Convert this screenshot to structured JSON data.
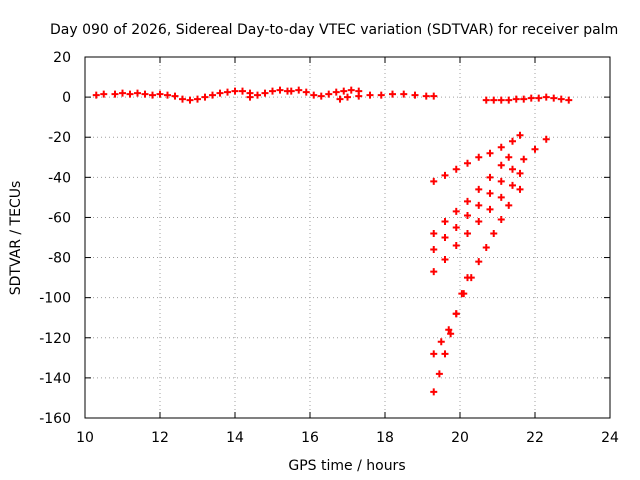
{
  "chart_data": {
    "type": "scatter",
    "title": "Day 090 of 2026, Sidereal Day-to-day VTEC variation (SDTVAR) for receiver palm",
    "xlabel": "GPS time / hours",
    "ylabel": "SDTVAR / TECUs",
    "xlim": [
      10,
      24
    ],
    "ylim": [
      -160,
      20
    ],
    "xticks": [
      10,
      12,
      14,
      16,
      18,
      20,
      22,
      24
    ],
    "yticks": [
      20,
      0,
      -20,
      -40,
      -60,
      -80,
      -100,
      -120,
      -140,
      -160
    ],
    "grid": true,
    "marker": "plus",
    "color": "#ff0000",
    "series": [
      {
        "x": [
          10.3,
          10.5,
          10.8,
          11.0,
          11.2,
          11.4,
          11.6,
          11.8,
          12.0,
          12.2,
          12.4,
          12.6,
          12.8,
          13.0,
          13.2,
          13.4,
          13.6,
          13.8,
          14.0,
          14.2,
          14.4
        ],
        "y": [
          1.0,
          1.5,
          1.5,
          2.0,
          1.5,
          2.0,
          1.5,
          1.0,
          1.5,
          1.0,
          0.5,
          -1.0,
          -1.5,
          -1.0,
          0.0,
          1.0,
          2.0,
          2.5,
          3.0,
          3.0,
          2.0
        ]
      },
      {
        "x": [
          14.4,
          14.6,
          14.8,
          15.0,
          15.2,
          15.4
        ],
        "y": [
          0.0,
          1.0,
          2.0,
          3.0,
          3.5,
          3.0
        ]
      },
      {
        "x": [
          15.5,
          15.7,
          15.9,
          16.1,
          16.3,
          16.5,
          16.7,
          16.9,
          17.1,
          17.3
        ],
        "y": [
          3.0,
          3.5,
          2.5,
          1.0,
          0.5,
          1.5,
          2.5,
          3.0,
          3.5,
          3.0
        ]
      },
      {
        "x": [
          16.8,
          17.0,
          17.3,
          17.6,
          17.9,
          18.2,
          18.5,
          18.8,
          19.1,
          19.3
        ],
        "y": [
          -1.0,
          0.0,
          0.5,
          1.0,
          1.0,
          1.5,
          1.5,
          1.0,
          0.5,
          0.5
        ]
      },
      {
        "x": [
          20.7,
          20.9,
          21.1,
          21.3,
          21.5,
          21.7,
          21.9,
          22.1,
          22.3,
          22.5,
          22.7,
          22.9
        ],
        "y": [
          -1.5,
          -1.5,
          -1.5,
          -1.5,
          -1.0,
          -1.0,
          -0.5,
          -0.5,
          0.0,
          -0.5,
          -1.0,
          -1.5
        ]
      },
      {
        "x": [
          19.3,
          19.6,
          19.9,
          20.2,
          20.5,
          20.8,
          21.1,
          21.4,
          21.6
        ],
        "y": [
          -42,
          -39,
          -36,
          -33,
          -30,
          -28,
          -25,
          -22,
          -19
        ]
      },
      {
        "x": [
          19.3,
          19.6,
          19.9,
          20.2,
          20.5,
          20.8,
          21.1,
          21.3
        ],
        "y": [
          -68,
          -62,
          -57,
          -52,
          -46,
          -40,
          -34,
          -30
        ]
      },
      {
        "x": [
          19.3,
          19.6,
          19.9,
          20.2,
          20.5,
          20.8,
          21.1,
          21.4,
          21.7,
          22.0,
          22.3
        ],
        "y": [
          -76,
          -70,
          -65,
          -59,
          -54,
          -48,
          -42,
          -36,
          -31,
          -26,
          -21
        ]
      },
      {
        "x": [
          19.3,
          19.6,
          19.9,
          20.2,
          20.5,
          20.8,
          21.1,
          21.4,
          21.6
        ],
        "y": [
          -87,
          -81,
          -74,
          -68,
          -62,
          -56,
          -50,
          -44,
          -38
        ]
      },
      {
        "x": [
          19.3,
          19.5,
          19.7,
          19.9,
          20.1,
          20.3,
          20.5,
          20.7,
          20.9,
          21.1,
          21.3,
          21.6
        ],
        "y": [
          -128,
          -122,
          -116,
          -108,
          -98,
          -90,
          -82,
          -75,
          -68,
          -61,
          -54,
          -46
        ]
      },
      {
        "x": [
          19.3,
          19.45,
          19.6,
          19.75,
          19.9,
          20.05,
          20.2
        ],
        "y": [
          -147,
          -138,
          -128,
          -118,
          -108,
          -98,
          -90
        ]
      }
    ]
  }
}
